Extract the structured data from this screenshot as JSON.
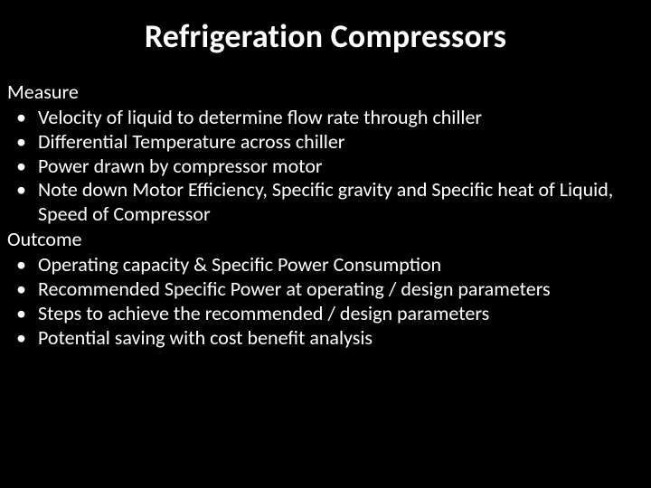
{
  "slide": {
    "title": "Refrigeration Compressors",
    "background_color": "#000000",
    "text_color": "#ffffff",
    "title_fontsize": 36,
    "body_fontsize": 22,
    "sections": [
      {
        "heading": "Measure",
        "items": [
          "Velocity of liquid to determine flow rate through chiller",
          "Differential Temperature across chiller",
          "Power drawn by compressor motor",
          "Note down Motor Efficiency, Specific gravity and Specific heat of Liquid, Speed of Compressor"
        ]
      },
      {
        "heading": "Outcome",
        "items": [
          "Operating capacity & Specific Power Consumption",
          "Recommended Specific Power at operating / design parameters",
          "Steps to achieve  the recommended / design parameters",
          "Potential saving with cost benefit analysis"
        ]
      }
    ]
  }
}
